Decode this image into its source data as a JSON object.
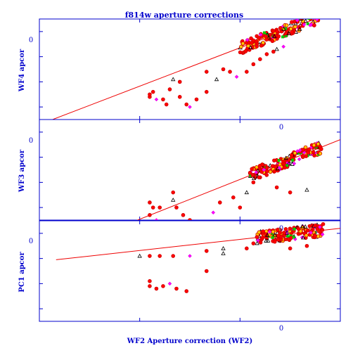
{
  "chart_data": {
    "type": "scatter",
    "title": "f814w aperture corrections",
    "xlabel": "WF2 Aperture correction (WF2)",
    "x_tick_labels": [
      "0"
    ],
    "colors": {
      "frame": "#0000cc",
      "fit_line": "#ee0000",
      "markers": [
        "#ff0000",
        "#ff00ff",
        "#ffcc00",
        "#00cc00",
        "#000000"
      ]
    },
    "panels": [
      {
        "ylabel": "WF4 apcor",
        "y_tick_labels": [
          "0"
        ],
        "fit": [
          [
            -0.6,
            -0.37
          ],
          [
            0.3,
            0.088
          ]
        ],
        "sparse_points": [
          [
            -0.27,
            -0.26
          ],
          [
            -0.26,
            -0.24
          ],
          [
            -0.27,
            -0.25
          ],
          [
            -0.25,
            -0.27
          ],
          [
            -0.23,
            -0.27
          ],
          [
            -0.2,
            -0.19
          ],
          [
            -0.18,
            -0.2
          ],
          [
            -0.21,
            -0.23
          ],
          [
            -0.18,
            -0.26
          ],
          [
            -0.16,
            -0.29
          ],
          [
            -0.15,
            -0.3
          ],
          [
            -0.22,
            -0.29
          ],
          [
            -0.13,
            -0.27
          ],
          [
            -0.1,
            -0.24
          ],
          [
            -0.07,
            -0.19
          ],
          [
            -0.05,
            -0.15
          ],
          [
            -0.03,
            -0.16
          ],
          [
            -0.01,
            -0.18
          ],
          [
            0.02,
            -0.16
          ],
          [
            0.04,
            -0.13
          ],
          [
            0.06,
            -0.11
          ],
          [
            0.08,
            -0.09
          ],
          [
            0.1,
            -0.08
          ],
          [
            0.11,
            -0.07
          ],
          [
            0.13,
            -0.06
          ],
          [
            -0.1,
            -0.16
          ]
        ],
        "cluster": [
          0.0,
          0.3,
          -0.075,
          0.005
        ]
      },
      {
        "ylabel": "WF3 apcor",
        "y_tick_labels": [
          "0"
        ],
        "fit": [
          [
            -0.42,
            -0.41
          ],
          [
            0.3,
            -0.03
          ]
        ],
        "sparse_points": [
          [
            -0.27,
            -0.28
          ],
          [
            -0.26,
            -0.3
          ],
          [
            -0.27,
            -0.33
          ],
          [
            -0.25,
            -0.35
          ],
          [
            -0.24,
            -0.3
          ],
          [
            -0.2,
            -0.27
          ],
          [
            -0.19,
            -0.3
          ],
          [
            -0.17,
            -0.33
          ],
          [
            -0.15,
            -0.35
          ],
          [
            -0.13,
            -0.37
          ],
          [
            -0.08,
            -0.32
          ],
          [
            -0.06,
            -0.28
          ],
          [
            -0.02,
            -0.26
          ],
          [
            0.0,
            -0.3
          ],
          [
            0.02,
            -0.24
          ],
          [
            0.04,
            -0.2
          ],
          [
            0.06,
            -0.18
          ],
          [
            0.08,
            -0.15
          ],
          [
            0.1,
            -0.14
          ],
          [
            -0.1,
            -0.36
          ],
          [
            -0.2,
            -0.24
          ],
          [
            0.11,
            -0.22
          ],
          [
            0.15,
            -0.24
          ],
          [
            0.2,
            -0.23
          ]
        ],
        "cluster": [
          0.03,
          0.3,
          -0.23,
          -0.05
        ]
      },
      {
        "ylabel": "PC1 apcor",
        "y_tick_labels": [
          "0"
        ],
        "fit": [
          [
            -0.55,
            -0.105
          ],
          [
            0.3,
            0.02
          ]
        ],
        "sparse_points": [
          [
            -0.27,
            -0.09
          ],
          [
            -0.24,
            -0.09
          ],
          [
            -0.2,
            -0.09
          ],
          [
            -0.15,
            -0.09
          ],
          [
            -0.1,
            -0.07
          ],
          [
            -0.05,
            -0.06
          ],
          [
            -0.27,
            -0.19
          ],
          [
            -0.27,
            -0.21
          ],
          [
            -0.25,
            -0.22
          ],
          [
            -0.23,
            -0.21
          ],
          [
            -0.21,
            -0.2
          ],
          [
            -0.19,
            -0.22
          ],
          [
            -0.16,
            -0.23
          ],
          [
            -0.1,
            -0.15
          ],
          [
            -0.05,
            -0.08
          ],
          [
            0.02,
            -0.06
          ],
          [
            0.04,
            -0.04
          ],
          [
            0.06,
            -0.03
          ],
          [
            0.08,
            -0.02
          ],
          [
            0.1,
            -0.01
          ],
          [
            0.12,
            -0.03
          ],
          [
            0.15,
            -0.06
          ],
          [
            0.2,
            -0.05
          ],
          [
            -0.3,
            -0.09
          ]
        ],
        "cluster": [
          0.05,
          0.3,
          -0.08,
          0.0
        ]
      }
    ]
  }
}
